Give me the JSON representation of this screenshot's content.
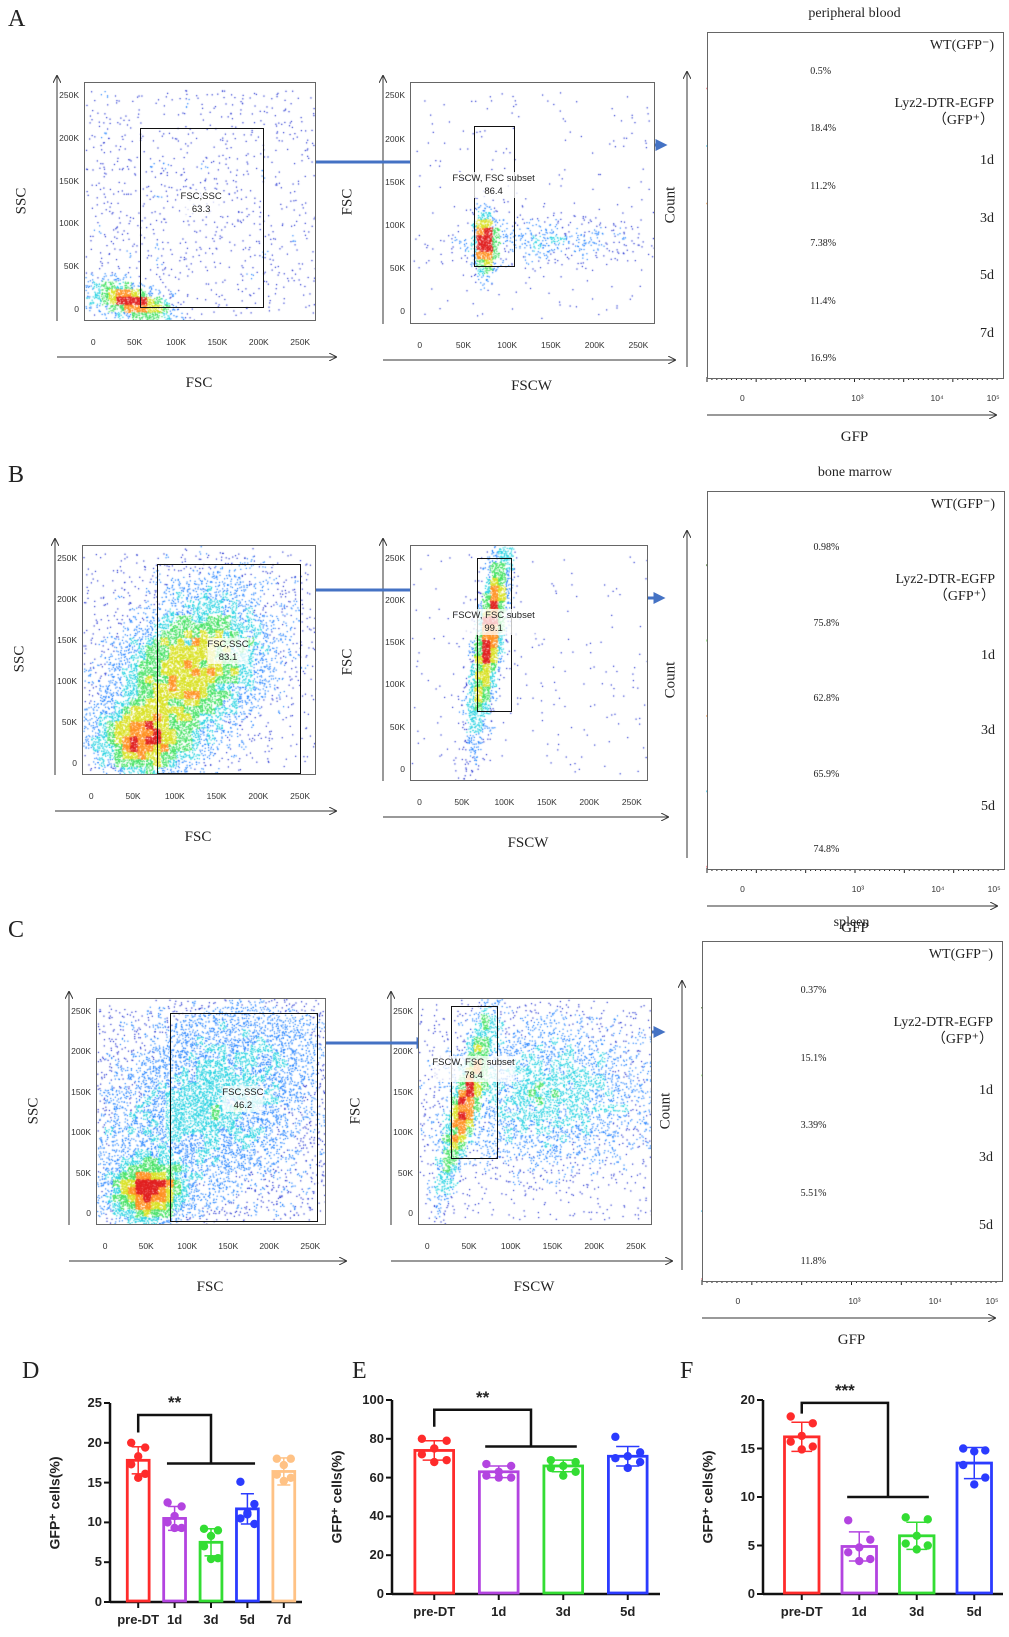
{
  "scatter_ticks": [
    "0",
    "50K",
    "100K",
    "150K",
    "200K",
    "250K"
  ],
  "hist_ticks": [
    "0",
    "10³",
    "10⁴",
    "10⁵"
  ],
  "panels": [
    {
      "letter": "A",
      "scatter1": {
        "xlabel": "FSC",
        "ylabel": "SSC",
        "gate_name": "FSC,SSC",
        "gate_value": "63.3"
      },
      "scatter2": {
        "xlabel": "FSCW",
        "ylabel": "FSC",
        "gate_name": "FSCW, FSC subset",
        "gate_value": "86.4"
      },
      "histogram": {
        "title": "peripheral blood",
        "ylabel": "Count",
        "xlabel": "GFP",
        "tracks": [
          {
            "label": "WT(GFP⁻)",
            "sublabel": "",
            "percent": "0.5%",
            "color": "#f07078"
          },
          {
            "label": "Lyz2-DTR-EGFP",
            "sublabel": "（GFP⁺）",
            "percent": "18.4%",
            "color": "#3cc4ea"
          },
          {
            "label": "1d",
            "sublabel": "",
            "percent": "11.2%",
            "color": "#f5a04a"
          },
          {
            "label": "3d",
            "sublabel": "",
            "percent": "7.38%",
            "color": "#7ee05a"
          },
          {
            "label": "5d",
            "sublabel": "",
            "percent": "11.4%",
            "color": "#3f6b2a"
          },
          {
            "label": "7d",
            "sublabel": "",
            "percent": "16.9%",
            "color": "#d8aeb0"
          }
        ]
      }
    },
    {
      "letter": "B",
      "scatter1": {
        "xlabel": "FSC",
        "ylabel": "SSC",
        "gate_name": "FSC,SSC",
        "gate_value": "83.1"
      },
      "scatter2": {
        "xlabel": "FSCW",
        "ylabel": "FSC",
        "gate_name": "FSCW, FSC subset",
        "gate_value": "99.1"
      },
      "histogram": {
        "title": "bone marrow",
        "ylabel": "Count",
        "xlabel": "GFP",
        "tracks": [
          {
            "label": "WT(GFP⁻)",
            "sublabel": "",
            "percent": "0.98%",
            "color": "#4f7a35"
          },
          {
            "label": "Lyz2-DTR-EGFP",
            "sublabel": "（GFP⁺）",
            "percent": "75.8%",
            "color": "#86e070"
          },
          {
            "label": "1d",
            "sublabel": "",
            "percent": "62.8%",
            "color": "#f5ad70"
          },
          {
            "label": "3d",
            "sublabel": "",
            "percent": "65.9%",
            "color": "#45c6ea"
          },
          {
            "label": "5d",
            "sublabel": "",
            "percent": "74.8%",
            "color": "#f07078"
          }
        ]
      }
    },
    {
      "letter": "C",
      "scatter1": {
        "xlabel": "FSC",
        "ylabel": "SSC",
        "gate_name": "FSC,SSC",
        "gate_value": "46.2"
      },
      "scatter2": {
        "xlabel": "FSCW",
        "ylabel": "FSC",
        "gate_name": "FSCW, FSC subset",
        "gate_value": "78.4"
      },
      "histogram": {
        "title": "spleen",
        "ylabel": "Count",
        "xlabel": "GFP",
        "tracks": [
          {
            "label": "WT(GFP⁻)",
            "sublabel": "",
            "percent": "0.37%",
            "color": "#4f7a35"
          },
          {
            "label": "Lyz2-DTR-EGFP",
            "sublabel": "（GFP⁺）",
            "percent": "15.1%",
            "color": "#86e070"
          },
          {
            "label": "1d",
            "sublabel": "",
            "percent": "3.39%",
            "color": "#f5a04a"
          },
          {
            "label": "3d",
            "sublabel": "",
            "percent": "5.51%",
            "color": "#3cc4ea"
          },
          {
            "label": "5d",
            "sublabel": "",
            "percent": "11.8%",
            "color": "#f07078"
          }
        ]
      }
    }
  ],
  "chart_data": [
    {
      "letter": "D",
      "type": "bar",
      "ylabel": "GFP⁺ cells(%)",
      "ylim": [
        0,
        25
      ],
      "yticks": [
        0,
        5,
        10,
        15,
        20,
        25
      ],
      "categories": [
        "pre-DT",
        "1d",
        "3d",
        "5d",
        "7d"
      ],
      "colors": [
        "#ff2b2b",
        "#b344e0",
        "#33dd33",
        "#2b3bff",
        "#ffc285"
      ],
      "values": [
        17.8,
        10.5,
        7.5,
        11.7,
        16.4
      ],
      "errors": [
        1.7,
        1.5,
        1.7,
        1.9,
        1.7
      ],
      "points": [
        [
          20,
          19.4,
          18.3,
          17.3,
          16.1,
          15.6
        ],
        [
          12.5,
          12,
          10.8,
          10,
          9.3,
          9.3
        ],
        [
          9.2,
          9,
          8.3,
          7,
          5.5,
          5.4
        ],
        [
          15.1,
          12.3,
          11.2,
          10.5,
          9.8,
          11
        ],
        [
          18,
          18,
          17.2,
          16,
          15.6,
          15.2
        ]
      ],
      "significance": {
        "label": "**",
        "from": "pre-DT",
        "to": [
          "1d",
          "3d",
          "5d"
        ],
        "top": 23.5,
        "group_level": 17.4
      }
    },
    {
      "letter": "E",
      "type": "bar",
      "ylabel": "GFP⁺ cells(%)",
      "ylim": [
        0,
        100
      ],
      "yticks": [
        0,
        20,
        40,
        60,
        80,
        100
      ],
      "categories": [
        "pre-DT",
        "1d",
        "3d",
        "5d"
      ],
      "colors": [
        "#ff2b2b",
        "#b344e0",
        "#33dd33",
        "#2b3bff"
      ],
      "values": [
        74,
        63,
        66,
        71
      ],
      "errors": [
        5,
        3,
        3,
        5
      ],
      "points": [
        [
          80,
          79,
          75,
          72,
          69,
          68
        ],
        [
          67,
          66,
          63,
          61,
          60,
          60
        ],
        [
          69,
          68,
          66,
          65,
          63,
          61
        ],
        [
          81,
          73,
          71,
          70,
          68,
          65
        ]
      ],
      "significance": {
        "label": "**",
        "from": "pre-DT",
        "to": [
          "1d",
          "3d"
        ],
        "top": 95,
        "group_level": 76
      }
    },
    {
      "letter": "F",
      "type": "bar",
      "ylabel": "GFP⁺ cells(%)",
      "ylim": [
        0,
        20
      ],
      "yticks": [
        0,
        5,
        10,
        15,
        20
      ],
      "categories": [
        "pre-DT",
        "1d",
        "3d",
        "5d"
      ],
      "colors": [
        "#ff2b2b",
        "#b344e0",
        "#33dd33",
        "#2b3bff"
      ],
      "values": [
        16.2,
        4.9,
        6.0,
        13.5
      ],
      "errors": [
        1.5,
        1.5,
        1.4,
        1.6
      ],
      "points": [
        [
          18.3,
          17.6,
          16.3,
          15.7,
          15.2,
          14.9
        ],
        [
          7.6,
          5.6,
          4.8,
          4.3,
          3.6,
          3.4
        ],
        [
          7.9,
          7.7,
          6,
          5.2,
          5,
          4.6
        ],
        [
          15,
          14.8,
          14.7,
          13.3,
          12,
          11.3
        ]
      ],
      "significance": {
        "label": "***",
        "from": "pre-DT",
        "to": [
          "1d",
          "3d"
        ],
        "top": 19.7,
        "group_level": 10
      }
    }
  ]
}
